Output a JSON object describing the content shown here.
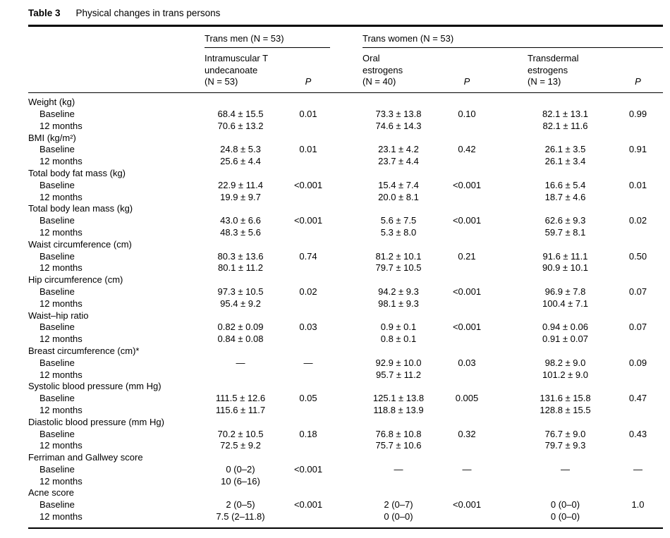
{
  "caption": {
    "label": "Table 3",
    "title": "Physical changes in trans persons"
  },
  "table": {
    "groups": [
      {
        "label": "Trans men (N = 53)"
      },
      {
        "label": "Trans women (N = 53)"
      }
    ],
    "column_headers": [
      {
        "label": "Intramuscular T\nundecanoate\n(N = 53)"
      },
      {
        "label": "P"
      },
      {
        "label": "Oral\nestrogens\n(N = 40)"
      },
      {
        "label": "P"
      },
      {
        "label": "Transdermal\nestrogens\n(N = 13)"
      },
      {
        "label": "P"
      }
    ],
    "sections": [
      {
        "label": "Weight (kg)",
        "rows": [
          {
            "label": "Baseline",
            "cells": [
              "68.4 ± 15.5",
              "0.01",
              "73.3 ± 13.8",
              "0.10",
              "82.1 ± 13.1",
              "0.99"
            ]
          },
          {
            "label": "12 months",
            "cells": [
              "70.6 ± 13.2",
              "",
              "74.6 ± 14.3",
              "",
              "82.1 ± 11.6",
              ""
            ]
          }
        ]
      },
      {
        "label": "BMI (kg/m²)",
        "rows": [
          {
            "label": "Baseline",
            "cells": [
              "24.8 ± 5.3",
              "0.01",
              "23.1 ± 4.2",
              "0.42",
              "26.1 ± 3.5",
              "0.91"
            ]
          },
          {
            "label": "12 months",
            "cells": [
              "25.6 ± 4.4",
              "",
              "23.7 ± 4.4",
              "",
              "26.1 ± 3.4",
              ""
            ]
          }
        ]
      },
      {
        "label": "Total body fat mass (kg)",
        "rows": [
          {
            "label": "Baseline",
            "cells": [
              "22.9 ± 11.4",
              "<0.001",
              "15.4 ± 7.4",
              "<0.001",
              "16.6 ± 5.4",
              "0.01"
            ]
          },
          {
            "label": "12 months",
            "cells": [
              "19.9 ± 9.7",
              "",
              "20.0 ± 8.1",
              "",
              "18.7 ± 4.6",
              ""
            ]
          }
        ]
      },
      {
        "label": "Total body lean mass (kg)",
        "rows": [
          {
            "label": "Baseline",
            "cells": [
              "43.0 ± 6.6",
              "<0.001",
              "5.6 ± 7.5",
              "<0.001",
              "62.6 ± 9.3",
              "0.02"
            ]
          },
          {
            "label": "12 months",
            "cells": [
              "48.3 ± 5.6",
              "",
              "5.3 ± 8.0",
              "",
              "59.7 ± 8.1",
              ""
            ]
          }
        ]
      },
      {
        "label": "Waist circumference (cm)",
        "rows": [
          {
            "label": "Baseline",
            "cells": [
              "80.3 ± 13.6",
              "0.74",
              "81.2 ± 10.1",
              "0.21",
              "91.6 ± 11.1",
              "0.50"
            ]
          },
          {
            "label": "12 months",
            "cells": [
              "80.1 ± 11.2",
              "",
              "79.7 ± 10.5",
              "",
              "90.9 ± 10.1",
              ""
            ]
          }
        ]
      },
      {
        "label": "Hip circumference (cm)",
        "rows": [
          {
            "label": "Baseline",
            "cells": [
              "97.3 ± 10.5",
              "0.02",
              "94.2 ± 9.3",
              "<0.001",
              "96.9 ± 7.8",
              "0.07"
            ]
          },
          {
            "label": "12 months",
            "cells": [
              "95.4 ± 9.2",
              "",
              "98.1 ± 9.3",
              "",
              "100.4 ± 7.1",
              ""
            ]
          }
        ]
      },
      {
        "label": "Waist–hip ratio",
        "rows": [
          {
            "label": "Baseline",
            "cells": [
              "0.82 ± 0.09",
              "0.03",
              "0.9 ± 0.1",
              "<0.001",
              "0.94 ± 0.06",
              "0.07"
            ]
          },
          {
            "label": "12 months",
            "cells": [
              "0.84 ± 0.08",
              "",
              "0.8 ± 0.1",
              "",
              "0.91 ± 0.07",
              ""
            ]
          }
        ]
      },
      {
        "label": "Breast circumference (cm)*",
        "rows": [
          {
            "label": "Baseline",
            "cells": [
              "—",
              "—",
              "92.9 ± 10.0",
              "0.03",
              "98.2 ± 9.0",
              "0.09"
            ]
          },
          {
            "label": "12 months",
            "cells": [
              "",
              "",
              "95.7 ± 11.2",
              "",
              "101.2 ± 9.0",
              ""
            ]
          }
        ]
      },
      {
        "label": "Systolic blood pressure (mm Hg)",
        "rows": [
          {
            "label": "Baseline",
            "cells": [
              "111.5 ± 12.6",
              "0.05",
              "125.1 ± 13.8",
              "0.005",
              "131.6 ± 15.8",
              "0.47"
            ]
          },
          {
            "label": "12 months",
            "cells": [
              "115.6 ± 11.7",
              "",
              "118.8 ± 13.9",
              "",
              "128.8 ± 15.5",
              ""
            ]
          }
        ]
      },
      {
        "label": "Diastolic blood pressure (mm Hg)",
        "rows": [
          {
            "label": "Baseline",
            "cells": [
              "70.2 ± 10.5",
              "0.18",
              "76.8 ± 10.8",
              "0.32",
              "76.7 ± 9.0",
              "0.43"
            ]
          },
          {
            "label": "12 months",
            "cells": [
              "72.5 ± 9.2",
              "",
              "75.7 ± 10.6",
              "",
              "79.7 ± 9.3",
              ""
            ]
          }
        ]
      },
      {
        "label": "Ferriman and Gallwey score",
        "rows": [
          {
            "label": "Baseline",
            "cells": [
              "0 (0–2)",
              "<0.001",
              "—",
              "—",
              "—",
              "—"
            ]
          },
          {
            "label": "12 months",
            "cells": [
              "10 (6–16)",
              "",
              "",
              "",
              "",
              ""
            ]
          }
        ]
      },
      {
        "label": "Acne score",
        "rows": [
          {
            "label": "Baseline",
            "cells": [
              "2 (0–5)",
              "<0.001",
              "2 (0–7)",
              "<0.001",
              "0 (0–0)",
              "1.0"
            ]
          },
          {
            "label": "12 months",
            "cells": [
              "7.5 (2–11.8)",
              "",
              "0 (0–0)",
              "",
              "0 (0–0)",
              ""
            ]
          }
        ]
      }
    ]
  }
}
